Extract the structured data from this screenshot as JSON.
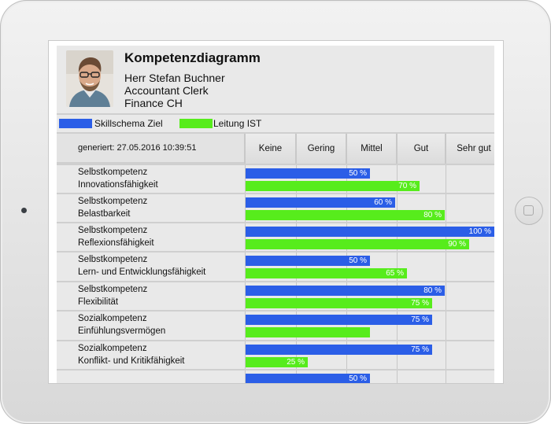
{
  "profile": {
    "title": "Kompetenzdiagramm",
    "name": "Herr Stefan Buchner",
    "role": "Accountant Clerk",
    "department": "Finance CH"
  },
  "legend": [
    {
      "label": "Skillschema Ziel",
      "color": "#2b5ee7"
    },
    {
      "label": "Leitung IST",
      "color": "#57ec1c"
    }
  ],
  "table": {
    "generated": "generiert: 27.05.2016   10:39:51",
    "levels": [
      "Keine",
      "Gering",
      "Mittel",
      "Gut",
      "Sehr gut"
    ],
    "rows": [
      {
        "category": "Selbstkompetenz",
        "skill": "Innovationsfähigkeit",
        "target": 50,
        "target_label": "50 %",
        "actual": 70,
        "actual_label": "70 %"
      },
      {
        "category": "Selbstkompetenz",
        "skill": "Belastbarkeit",
        "target": 60,
        "target_label": "60 %",
        "actual": 80,
        "actual_label": "80 %"
      },
      {
        "category": "Selbstkompetenz",
        "skill": "Reflexionsfähigkeit",
        "target": 100,
        "target_label": "100 %",
        "actual": 90,
        "actual_label": "90 %"
      },
      {
        "category": "Selbstkompetenz",
        "skill": "Lern- und Entwicklungsfähigkeit",
        "target": 50,
        "target_label": "50 %",
        "actual": 65,
        "actual_label": "65 %"
      },
      {
        "category": "Selbstkompetenz",
        "skill": "Flexibilität",
        "target": 80,
        "target_label": "80 %",
        "actual": 75,
        "actual_label": "75 %"
      },
      {
        "category": "Sozialkompetenz",
        "skill": "Einfühlungsvermögen",
        "target": 75,
        "target_label": "75 %",
        "actual": 50,
        "actual_label": ""
      },
      {
        "category": "Sozialkompetenz",
        "skill": "Konflikt- und Kritikfähigkeit",
        "target": 75,
        "target_label": "75 %",
        "actual": 25,
        "actual_label": "25 %"
      },
      {
        "category": "",
        "skill": "",
        "target": 50,
        "target_label": "50 %",
        "actual": null,
        "actual_label": ""
      }
    ]
  }
}
